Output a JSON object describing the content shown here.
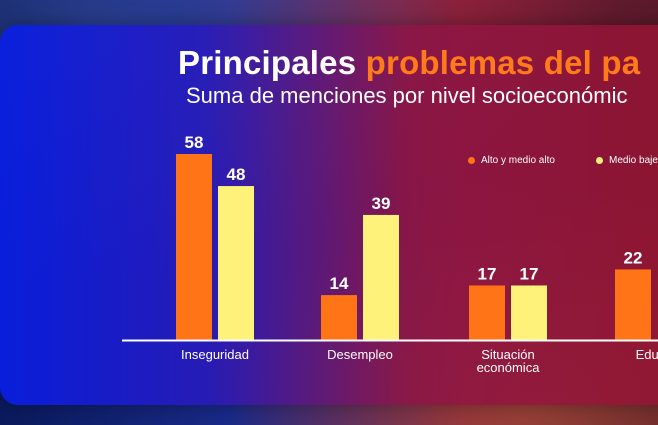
{
  "title": {
    "part1": "Principales",
    "part2": "problemas del pa"
  },
  "subtitle": "Suma de menciones por nivel socioeconómic",
  "colors": {
    "alto": "#ff7417",
    "bajo": "#fff27a",
    "accent": "#ff7a1a"
  },
  "chart_data": {
    "type": "bar",
    "title": "Principales problemas del pa",
    "subtitle": "Suma de menciones por nivel socioeconómic",
    "categories": [
      "Inseguridad",
      "Desempleo",
      "Situación económica",
      "Educa"
    ],
    "category_lines": [
      [
        "Inseguridad"
      ],
      [
        "Desempleo"
      ],
      [
        "Situación",
        "económica"
      ],
      [
        "Educa"
      ]
    ],
    "series": [
      {
        "name": "Alto y medio alto",
        "values": [
          58,
          14,
          17,
          22
        ]
      },
      {
        "name": "Medio baje",
        "values": [
          48,
          39,
          17,
          null
        ]
      }
    ],
    "legend": [
      "Alto y medio alto",
      "Medio baje"
    ],
    "xlabel": "",
    "ylabel": "",
    "ylim": [
      0,
      58
    ],
    "grid": false,
    "legend_position": "top-right"
  }
}
